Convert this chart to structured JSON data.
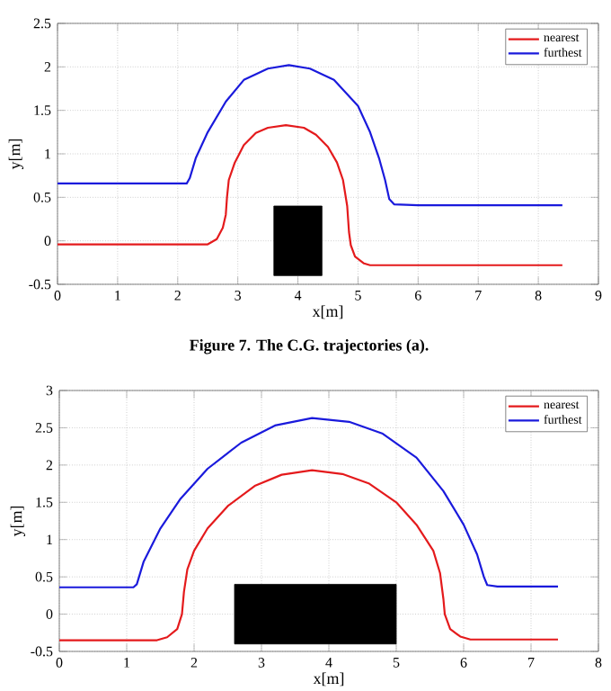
{
  "chart_data": [
    {
      "type": "line",
      "xlabel": "x[m]",
      "ylabel": "y[m]",
      "annotations": [
        "Figure 7. The C.G. trajectories (a)."
      ],
      "xlim": [
        0,
        9
      ],
      "ylim": [
        -0.5,
        2.5
      ],
      "xticks": [
        0,
        1,
        2,
        3,
        4,
        5,
        6,
        7,
        8,
        9
      ],
      "yticks": [
        -0.5,
        0,
        0.5,
        1,
        1.5,
        2,
        2.5
      ],
      "grid": true,
      "legend": "top right",
      "marker": "none",
      "line_style": "solid",
      "series": [
        {
          "name": "nearest",
          "color": "#e41a1c",
          "x": [
            0,
            2.5,
            2.65,
            2.75,
            2.8,
            2.82,
            2.85,
            2.95,
            3.1,
            3.3,
            3.5,
            3.8,
            4.1,
            4.3,
            4.5,
            4.65,
            4.75,
            4.82,
            4.85,
            4.88,
            4.95,
            5.1,
            5.2,
            8.4
          ],
          "values": [
            -0.04,
            -0.04,
            0.02,
            0.15,
            0.3,
            0.5,
            0.7,
            0.9,
            1.1,
            1.24,
            1.3,
            1.33,
            1.3,
            1.22,
            1.08,
            0.9,
            0.7,
            0.4,
            0.1,
            -0.05,
            -0.18,
            -0.26,
            -0.28,
            -0.28
          ]
        },
        {
          "name": "furthest",
          "color": "#1a1adc",
          "x": [
            0,
            2.15,
            2.2,
            2.3,
            2.5,
            2.8,
            3.1,
            3.5,
            3.85,
            4.2,
            4.6,
            5.0,
            5.2,
            5.35,
            5.45,
            5.52,
            5.6,
            6,
            8.4
          ],
          "values": [
            0.66,
            0.66,
            0.72,
            0.95,
            1.25,
            1.6,
            1.85,
            1.98,
            2.02,
            1.98,
            1.85,
            1.55,
            1.25,
            0.95,
            0.7,
            0.48,
            0.42,
            0.41,
            0.41
          ]
        },
        {
          "type": "area",
          "color": "#000000",
          "x": [
            3.6,
            3.6,
            4.4,
            4.4
          ],
          "values": [
            -0.4,
            0.4,
            0.4,
            -0.4
          ]
        }
      ]
    },
    {
      "type": "line",
      "xlabel": "x[m]",
      "ylabel": "y[m]",
      "xlim": [
        0,
        8
      ],
      "ylim": [
        -0.5,
        3
      ],
      "xticks": [
        0,
        1,
        2,
        3,
        4,
        5,
        6,
        7,
        8
      ],
      "yticks": [
        -0.5,
        0,
        0.5,
        1,
        1.5,
        2,
        2.5,
        3
      ],
      "grid": true,
      "legend": "top right",
      "marker": "none",
      "line_style": "solid",
      "series": [
        {
          "name": "nearest",
          "color": "#e41a1c",
          "x": [
            0,
            1.45,
            1.6,
            1.75,
            1.82,
            1.85,
            1.9,
            2.0,
            2.2,
            2.5,
            2.9,
            3.3,
            3.75,
            4.2,
            4.6,
            5.0,
            5.3,
            5.55,
            5.65,
            5.7,
            5.72,
            5.8,
            5.95,
            6.1,
            7.4
          ],
          "values": [
            -0.35,
            -0.35,
            -0.31,
            -0.2,
            0,
            0.3,
            0.6,
            0.85,
            1.15,
            1.45,
            1.72,
            1.87,
            1.93,
            1.88,
            1.75,
            1.5,
            1.2,
            0.85,
            0.55,
            0.2,
            0,
            -0.2,
            -0.3,
            -0.34,
            -0.34
          ]
        },
        {
          "name": "furthest",
          "color": "#1a1adc",
          "x": [
            0,
            1.1,
            1.15,
            1.25,
            1.5,
            1.8,
            2.2,
            2.7,
            3.2,
            3.75,
            4.3,
            4.8,
            5.3,
            5.7,
            6.0,
            6.2,
            6.3,
            6.35,
            6.5,
            7.4
          ],
          "values": [
            0.36,
            0.36,
            0.4,
            0.7,
            1.15,
            1.55,
            1.95,
            2.3,
            2.53,
            2.63,
            2.58,
            2.42,
            2.1,
            1.65,
            1.2,
            0.8,
            0.5,
            0.39,
            0.37,
            0.37
          ]
        },
        {
          "type": "area",
          "color": "#000000",
          "x": [
            2.6,
            2.6,
            5.0,
            5.0
          ],
          "values": [
            -0.4,
            0.4,
            0.4,
            -0.4
          ]
        }
      ]
    }
  ]
}
